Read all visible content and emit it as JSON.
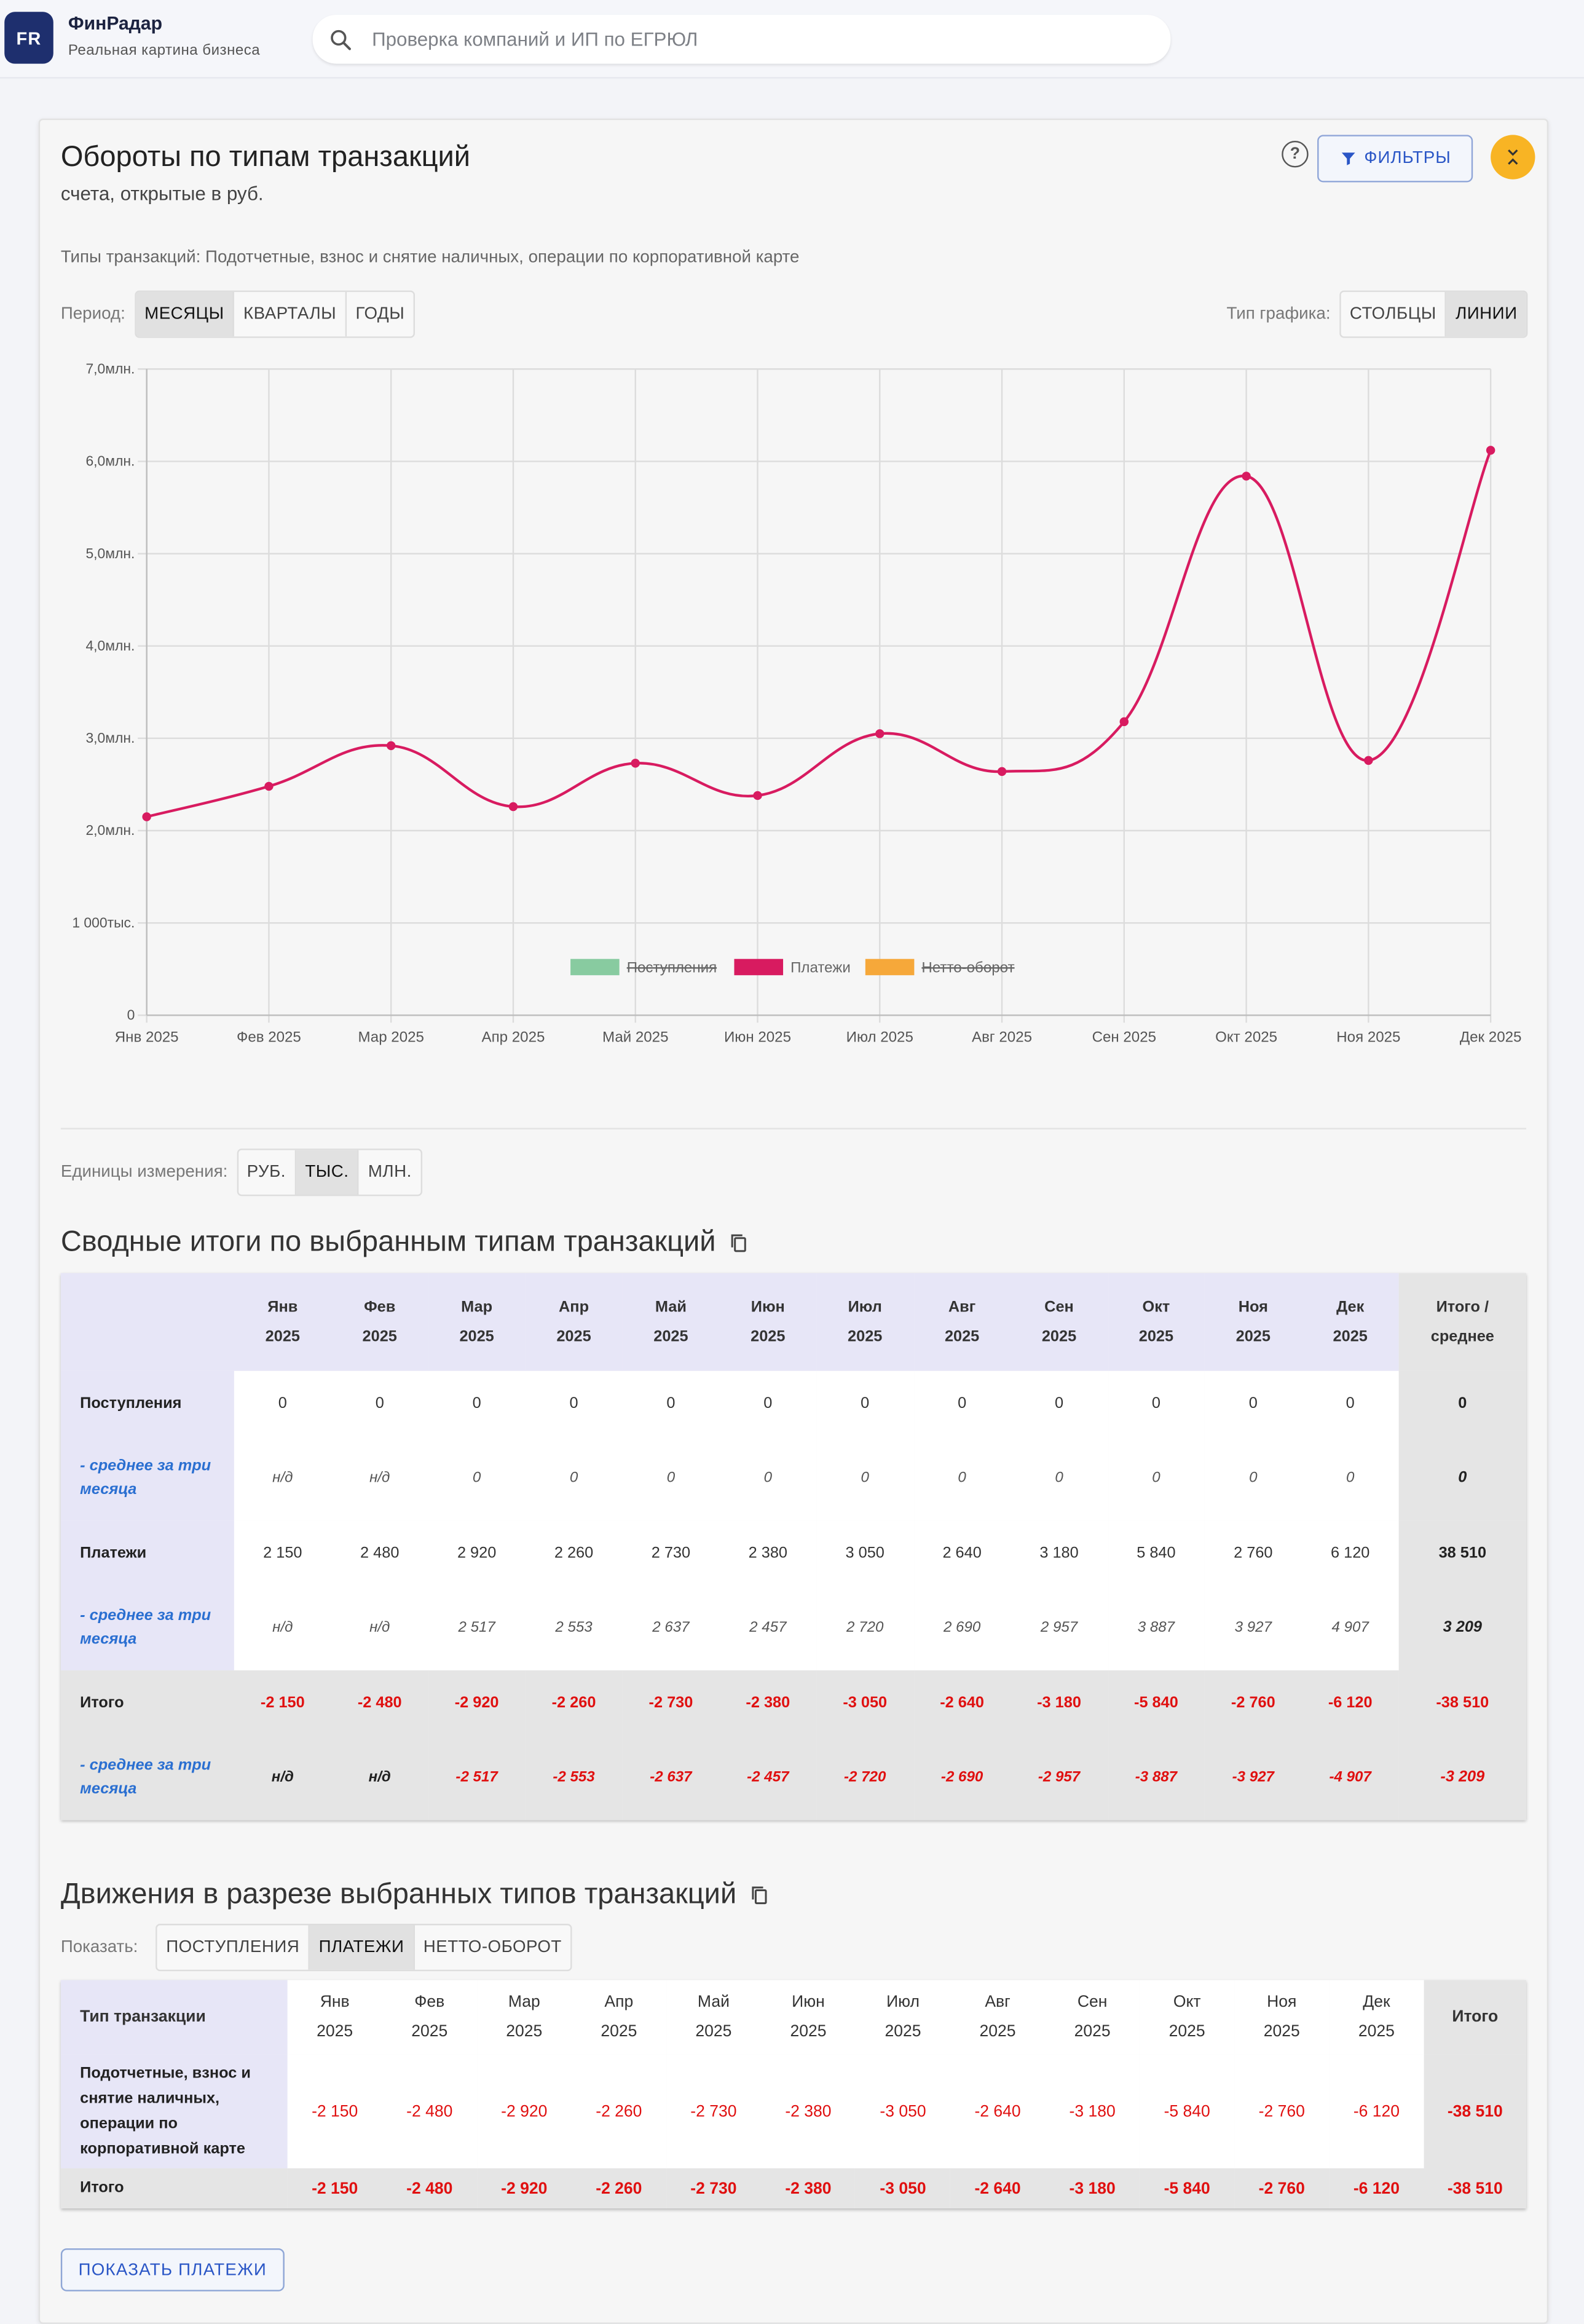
{
  "header": {
    "logo_text": "FR",
    "brand": "ФинРадар",
    "tagline": "Реальная картина бизнеса",
    "search_placeholder": "Проверка компаний и ИП по ЕГРЮЛ"
  },
  "card": {
    "title": "Обороты по типам транзакций",
    "subtitle": "счета, открытые в руб.",
    "help_icon_text": "?",
    "filters_label": "ФИЛЬТРЫ",
    "types_text": "Типы транзакций: Подотчетные, взнос и снятие наличных, операции по корпоративной карте",
    "period_label": "Период:",
    "period_options": [
      "МЕСЯЦЫ",
      "КВАРТАЛЫ",
      "ГОДЫ"
    ],
    "period_selected": "МЕСЯЦЫ",
    "chart_type_label": "Тип графика:",
    "chart_type_options": [
      "СТОЛБЦЫ",
      "ЛИНИИ"
    ],
    "chart_type_selected": "ЛИНИИ",
    "units_label": "Единицы измерения:",
    "units_options": [
      "РУБ.",
      "ТЫС.",
      "МЛН."
    ],
    "units_selected": "ТЫС."
  },
  "chart_data": {
    "type": "line",
    "categories": [
      "Янв 2025",
      "Фев 2025",
      "Мар 2025",
      "Апр 2025",
      "Май 2025",
      "Июн 2025",
      "Июл 2025",
      "Авг 2025",
      "Сен 2025",
      "Окт 2025",
      "Ноя 2025",
      "Дек 2025"
    ],
    "y_ticks": [
      "0",
      "1 000тыс.",
      "2,0млн.",
      "3,0млн.",
      "4,0млн.",
      "5,0млн.",
      "6,0млн.",
      "7,0млн."
    ],
    "ylim": [
      0,
      7000000
    ],
    "grid": true,
    "legend_position": "bottom",
    "series": [
      {
        "name": "Поступления",
        "color": "#88cba0",
        "hidden": true,
        "values": [
          0,
          0,
          0,
          0,
          0,
          0,
          0,
          0,
          0,
          0,
          0,
          0
        ]
      },
      {
        "name": "Платежи",
        "color": "#d81b60",
        "hidden": false,
        "values": [
          2150000,
          2480000,
          2920000,
          2260000,
          2730000,
          2380000,
          3050000,
          2640000,
          3180000,
          5840000,
          2760000,
          6120000
        ]
      },
      {
        "name": "Нетто-оборот",
        "color": "#f6a83a",
        "hidden": true,
        "values": [
          -2150000,
          -2480000,
          -2920000,
          -2260000,
          -2730000,
          -2380000,
          -3050000,
          -2640000,
          -3180000,
          -5840000,
          -2760000,
          -6120000
        ]
      }
    ]
  },
  "summary": {
    "title": "Сводные итоги по выбранным типам транзакций",
    "months": [
      [
        "Янв",
        "2025"
      ],
      [
        "Фев",
        "2025"
      ],
      [
        "Мар",
        "2025"
      ],
      [
        "Апр",
        "2025"
      ],
      [
        "Май",
        "2025"
      ],
      [
        "Июн",
        "2025"
      ],
      [
        "Июл",
        "2025"
      ],
      [
        "Авг",
        "2025"
      ],
      [
        "Сен",
        "2025"
      ],
      [
        "Окт",
        "2025"
      ],
      [
        "Ноя",
        "2025"
      ],
      [
        "Дек",
        "2025"
      ]
    ],
    "total_header": [
      "Итого /",
      "среднее"
    ],
    "rows": [
      {
        "label": "Поступления",
        "avg": false,
        "bottom": false,
        "cells": [
          "0",
          "0",
          "0",
          "0",
          "0",
          "0",
          "0",
          "0",
          "0",
          "0",
          "0",
          "0"
        ],
        "total": "0"
      },
      {
        "label": "- среднее за три месяца",
        "avg": true,
        "bottom": false,
        "cells": [
          "н/д",
          "н/д",
          "0",
          "0",
          "0",
          "0",
          "0",
          "0",
          "0",
          "0",
          "0",
          "0"
        ],
        "total": "0"
      },
      {
        "label": "Платежи",
        "avg": false,
        "bottom": false,
        "cells": [
          "2 150",
          "2 480",
          "2 920",
          "2 260",
          "2 730",
          "2 380",
          "3 050",
          "2 640",
          "3 180",
          "5 840",
          "2 760",
          "6 120"
        ],
        "total": "38 510"
      },
      {
        "label": "- среднее за три месяца",
        "avg": true,
        "bottom": false,
        "cells": [
          "н/д",
          "н/д",
          "2 517",
          "2 553",
          "2 637",
          "2 457",
          "2 720",
          "2 690",
          "2 957",
          "3 887",
          "3 927",
          "4 907"
        ],
        "total": "3 209"
      },
      {
        "label": "Итого",
        "avg": false,
        "bottom": true,
        "cells": [
          "-2 150",
          "-2 480",
          "-2 920",
          "-2 260",
          "-2 730",
          "-2 380",
          "-3 050",
          "-2 640",
          "-3 180",
          "-5 840",
          "-2 760",
          "-6 120"
        ],
        "total": "-38 510"
      },
      {
        "label": "- среднее за три месяца",
        "avg": true,
        "bottom": true,
        "cells": [
          "н/д",
          "н/д",
          "-2 517",
          "-2 553",
          "-2 637",
          "-2 457",
          "-2 720",
          "-2 690",
          "-2 957",
          "-3 887",
          "-3 927",
          "-4 907"
        ],
        "total": "-3 209"
      }
    ]
  },
  "movements": {
    "title": "Движения в разрезе выбранных типов транзакций",
    "show_label": "Показать:",
    "show_options": [
      "ПОСТУПЛЕНИЯ",
      "ПЛАТЕЖИ",
      "НЕТТО-ОБОРОТ"
    ],
    "show_selected": "ПЛАТЕЖИ",
    "type_header": "Тип транзакции",
    "total_header": "Итого",
    "row_label": "Подотчетные, взнос и снятие наличных, операции по корпоративной карте",
    "row_cells": [
      "-2 150",
      "-2 480",
      "-2 920",
      "-2 260",
      "-2 730",
      "-2 380",
      "-3 050",
      "-2 640",
      "-3 180",
      "-5 840",
      "-2 760",
      "-6 120"
    ],
    "row_total": "-38 510",
    "footer_label": "Итого",
    "footer_cells": [
      "-2 150",
      "-2 480",
      "-2 920",
      "-2 260",
      "-2 730",
      "-2 380",
      "-3 050",
      "-2 640",
      "-3 180",
      "-5 840",
      "-2 760",
      "-6 120"
    ],
    "footer_total": "-38 510",
    "show_payments_button": "ПОКАЗАТЬ ПЛАТЕЖИ"
  }
}
